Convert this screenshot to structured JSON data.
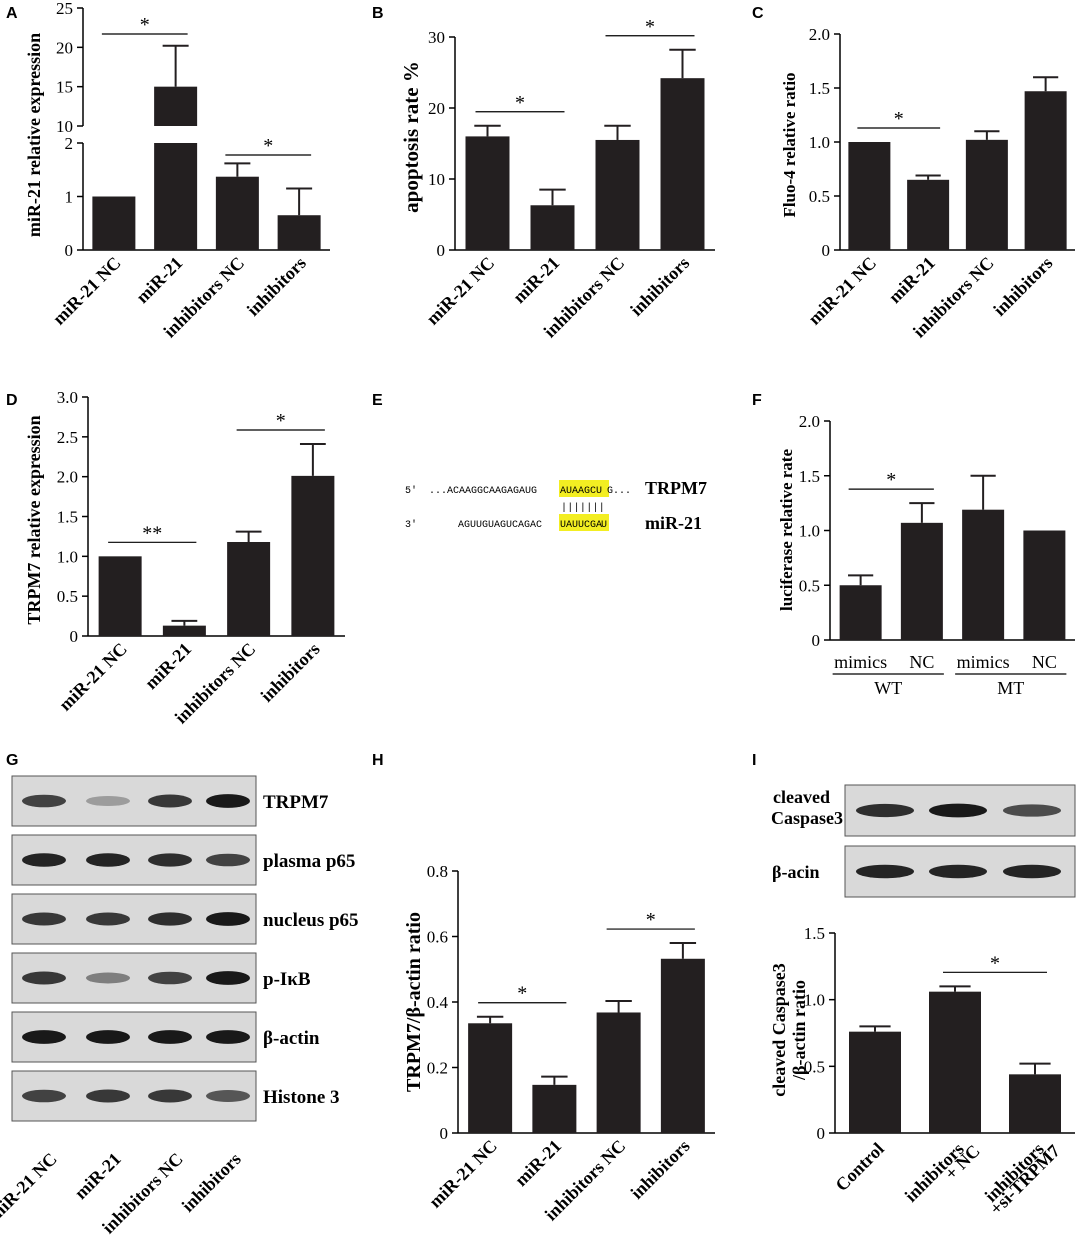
{
  "panels": {
    "A": "A",
    "B": "B",
    "C": "C",
    "D": "D",
    "E": "E",
    "F": "F",
    "G": "G",
    "H": "H",
    "I": "I"
  },
  "colors": {
    "bar": "#231f20",
    "axis": "#000000",
    "highlight": "#f3ee22"
  },
  "chart_data": [
    {
      "id": "A",
      "type": "bar",
      "broken_axis": true,
      "ylabel": "miR-21 relative expression",
      "categories": [
        "miR-21 NC",
        "miR-21",
        "inhibitors NC",
        "inhibitors"
      ],
      "values": [
        1.0,
        15.0,
        1.37,
        0.65
      ],
      "errors": [
        0,
        5.2,
        0.25,
        0.5
      ],
      "ylim_lower": [
        0,
        2
      ],
      "ylim_upper": [
        10,
        25
      ],
      "ticks_lower": [
        "0",
        "1",
        "2"
      ],
      "ticks_upper": [
        "10",
        "15",
        "20",
        "25"
      ],
      "significance": [
        {
          "from": 0,
          "to": 1,
          "label": "*"
        },
        {
          "from": 2,
          "to": 3,
          "label": "*"
        }
      ]
    },
    {
      "id": "B",
      "type": "bar",
      "ylabel": "apoptosis rate %",
      "categories": [
        "miR-21 NC",
        "miR-21",
        "inhibitors NC",
        "inhibitors"
      ],
      "values": [
        16.0,
        6.3,
        15.5,
        24.2
      ],
      "errors": [
        1.5,
        2.2,
        2.0,
        4.0
      ],
      "ylim": [
        0,
        30
      ],
      "ticks": [
        "0",
        "10",
        "20",
        "30"
      ],
      "significance": [
        {
          "from": 0,
          "to": 1,
          "label": "*"
        },
        {
          "from": 2,
          "to": 3,
          "label": "*"
        }
      ]
    },
    {
      "id": "C",
      "type": "bar",
      "ylabel": "Fluo-4 relative ratio",
      "categories": [
        "miR-21 NC",
        "miR-21",
        "inhibitors NC",
        "inhibitors"
      ],
      "values": [
        1.0,
        0.65,
        1.02,
        1.47
      ],
      "errors": [
        0,
        0.04,
        0.08,
        0.13
      ],
      "ylim": [
        0,
        2.0
      ],
      "ticks": [
        "0",
        "0.5",
        "1.0",
        "1.5",
        "2.0"
      ],
      "significance": [
        {
          "from": 0,
          "to": 1,
          "label": "*"
        }
      ]
    },
    {
      "id": "D",
      "type": "bar",
      "ylabel": "TRPM7 relative expression",
      "categories": [
        "miR-21 NC",
        "miR-21",
        "inhibitors NC",
        "inhibitors"
      ],
      "values": [
        1.0,
        0.13,
        1.18,
        2.01
      ],
      "errors": [
        0,
        0.06,
        0.13,
        0.4
      ],
      "ylim": [
        0,
        3.0
      ],
      "ticks": [
        "0",
        "0.5",
        "1.0",
        "1.5",
        "2.0",
        "2.5",
        "3.0"
      ],
      "significance": [
        {
          "from": 0,
          "to": 1,
          "label": "**"
        },
        {
          "from": 2,
          "to": 3,
          "label": "*"
        }
      ]
    },
    {
      "id": "F",
      "type": "bar",
      "ylabel": "luciferase relative rate",
      "categories": [
        "mimics",
        "NC",
        "mimics",
        "NC"
      ],
      "groups": [
        "WT",
        "MT"
      ],
      "values": [
        0.5,
        1.07,
        1.19,
        1.0
      ],
      "errors": [
        0.09,
        0.18,
        0.31,
        0
      ],
      "ylim": [
        0,
        2.0
      ],
      "ticks": [
        "0",
        "0.5",
        "1.0",
        "1.5",
        "2.0"
      ],
      "significance": [
        {
          "from": 0,
          "to": 1,
          "label": "*"
        }
      ]
    },
    {
      "id": "H",
      "type": "bar",
      "ylabel": "TRPM7/β-actin ratio",
      "categories": [
        "miR-21 NC",
        "miR-21",
        "inhibitors NC",
        "inhibitors"
      ],
      "values": [
        0.335,
        0.147,
        0.368,
        0.532
      ],
      "errors": [
        0.02,
        0.025,
        0.035,
        0.048
      ],
      "ylim": [
        0,
        0.8
      ],
      "ticks": [
        "0",
        "0.2",
        "0.4",
        "0.6",
        "0.8"
      ],
      "significance": [
        {
          "from": 0,
          "to": 1,
          "label": "*"
        },
        {
          "from": 2,
          "to": 3,
          "label": "*"
        }
      ]
    },
    {
      "id": "I",
      "type": "bar",
      "ylabel_line1": "cleaved Caspase3",
      "ylabel_line2": "/β-actin ratio",
      "categories": [
        "Control",
        "inhibitors\n+ NC",
        "inhibitors\n+si-TRPM7"
      ],
      "values": [
        0.76,
        1.06,
        0.44
      ],
      "errors": [
        0.04,
        0.04,
        0.08
      ],
      "ylim": [
        0,
        1.5
      ],
      "ticks": [
        "0",
        "0.5",
        "1.0",
        "1.5"
      ],
      "significance": [
        {
          "from": 1,
          "to": 2,
          "label": "*"
        }
      ]
    }
  ],
  "sequence": {
    "line1_prefix": "5'",
    "line1_seq": "...ACAAGGCAAGAGAUG",
    "line1_hl": "AUAAGCU",
    "line1_suffix": "G...",
    "line1_label": "TRPM7",
    "pairs": "|||||||",
    "line2_prefix": "3'",
    "line2_seq": "AGUUGUAGUCAGAC",
    "line2_hl": "UAUUCGA",
    "line2_suffix": "U",
    "line2_label": "miR-21"
  },
  "blot_G": {
    "labels": [
      "TRPM7",
      "plasma p65",
      "nucleus p65",
      "p-IκB",
      "β-actin",
      "Histone 3"
    ],
    "intensities": [
      [
        0.75,
        0.3,
        0.8,
        0.95
      ],
      [
        0.9,
        0.9,
        0.85,
        0.75
      ],
      [
        0.8,
        0.8,
        0.85,
        0.95
      ],
      [
        0.8,
        0.45,
        0.75,
        0.95
      ],
      [
        0.95,
        0.95,
        0.95,
        0.95
      ],
      [
        0.75,
        0.8,
        0.8,
        0.65
      ]
    ],
    "lanes": [
      "miR-21 NC",
      "miR-21",
      "inhibitors NC",
      "inhibitors"
    ]
  },
  "blot_I": {
    "labels_line1": "cleaved",
    "labels_line2": "Caspase3",
    "label_actin": "β-acin",
    "intensities": [
      [
        0.85,
        0.95,
        0.7
      ],
      [
        0.9,
        0.9,
        0.9
      ]
    ]
  }
}
